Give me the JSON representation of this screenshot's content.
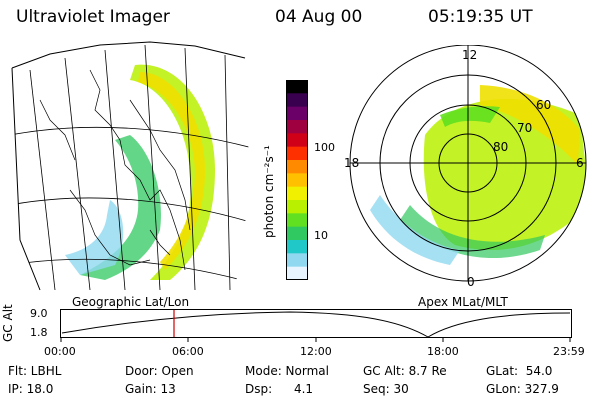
{
  "header": {
    "instrument": "Ultraviolet Imager",
    "date": "04 Aug 00",
    "time": "05:19:35 UT"
  },
  "left_panel": {
    "caption": "Geographic Lat/Lon"
  },
  "right_panel": {
    "caption": "Apex MLat/MLT",
    "mlt_labels": {
      "top": "12",
      "left": "18",
      "right": "6",
      "bottom": "0"
    },
    "lat_labels": [
      "60",
      "70",
      "80"
    ]
  },
  "colorbar": {
    "unit_label": "photon cm⁻²s⁻¹",
    "ticks": [
      "100",
      "10"
    ],
    "colors": [
      "#000000",
      "#3a0050",
      "#6a0068",
      "#9e0040",
      "#d00018",
      "#ff3000",
      "#ff8a00",
      "#ffc000",
      "#f0f000",
      "#b8f000",
      "#60e020",
      "#30c860",
      "#20c8c8",
      "#90d8f0",
      "#e8f4ff"
    ]
  },
  "timeline": {
    "y_axis_label": "GC Alt",
    "y_ticks": [
      "9.0",
      "1.8"
    ],
    "x_ticks": [
      "00:00",
      "06:00",
      "12:00",
      "18:00",
      "23:59"
    ],
    "marker_time_hours": 5.33,
    "marker_color": "#d00000"
  },
  "info": {
    "filter": "Flt: LBHL",
    "ip": "IP: 18.0",
    "door": "Door: Open",
    "gain": "Gain: 13",
    "mode": "Mode: Normal",
    "dsp_label": "Dsp:",
    "dsp_value": "4.1",
    "gc_alt": "GC Alt: 8.7 Re",
    "seq": "Seq: 30",
    "glat": "GLat:  54.0",
    "glon": "GLon: 327.9"
  }
}
